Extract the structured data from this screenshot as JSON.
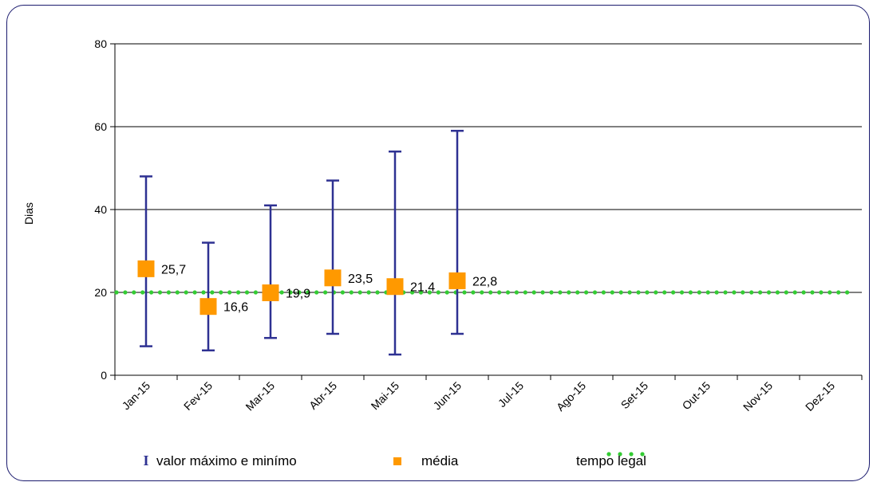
{
  "chart_data": {
    "type": "scatter",
    "title": "",
    "xlabel": "",
    "ylabel": "Dias",
    "ylim": [
      0,
      80
    ],
    "yticks": [
      0,
      20,
      40,
      60,
      80
    ],
    "grid": true,
    "legend_position": "bottom",
    "categories": [
      "Jan-15",
      "Fev-15",
      "Mar-15",
      "Abr-15",
      "Mai-15",
      "Jun-15",
      "Jul-15",
      "Ago-15",
      "Set-15",
      "Out-15",
      "Nov-15",
      "Dez-15"
    ],
    "series": [
      {
        "name": "valor máximo e minímo",
        "kind": "range",
        "color": "#2e3192",
        "min": [
          7,
          6,
          9,
          10,
          5,
          10,
          null,
          null,
          null,
          null,
          null,
          null
        ],
        "max": [
          48,
          32,
          41,
          47,
          54,
          59,
          null,
          null,
          null,
          null,
          null,
          null
        ]
      },
      {
        "name": "média",
        "kind": "marker",
        "color": "#ff9900",
        "values": [
          25.7,
          16.6,
          19.9,
          23.5,
          21.4,
          22.8,
          null,
          null,
          null,
          null,
          null,
          null
        ],
        "labels": [
          "25,7",
          "16,6",
          "19,9",
          "23,5",
          "21,4",
          "22,8",
          "",
          "",
          "",
          "",
          "",
          ""
        ]
      },
      {
        "name": "tempo legal",
        "kind": "reference-line",
        "color": "#33cc33",
        "value": 20
      }
    ],
    "legend": [
      {
        "symbol": "I",
        "label": "valor máximo e minímo"
      },
      {
        "symbol": "■",
        "label": "média"
      },
      {
        "symbol": "••••",
        "label": "tempo legal"
      }
    ]
  }
}
